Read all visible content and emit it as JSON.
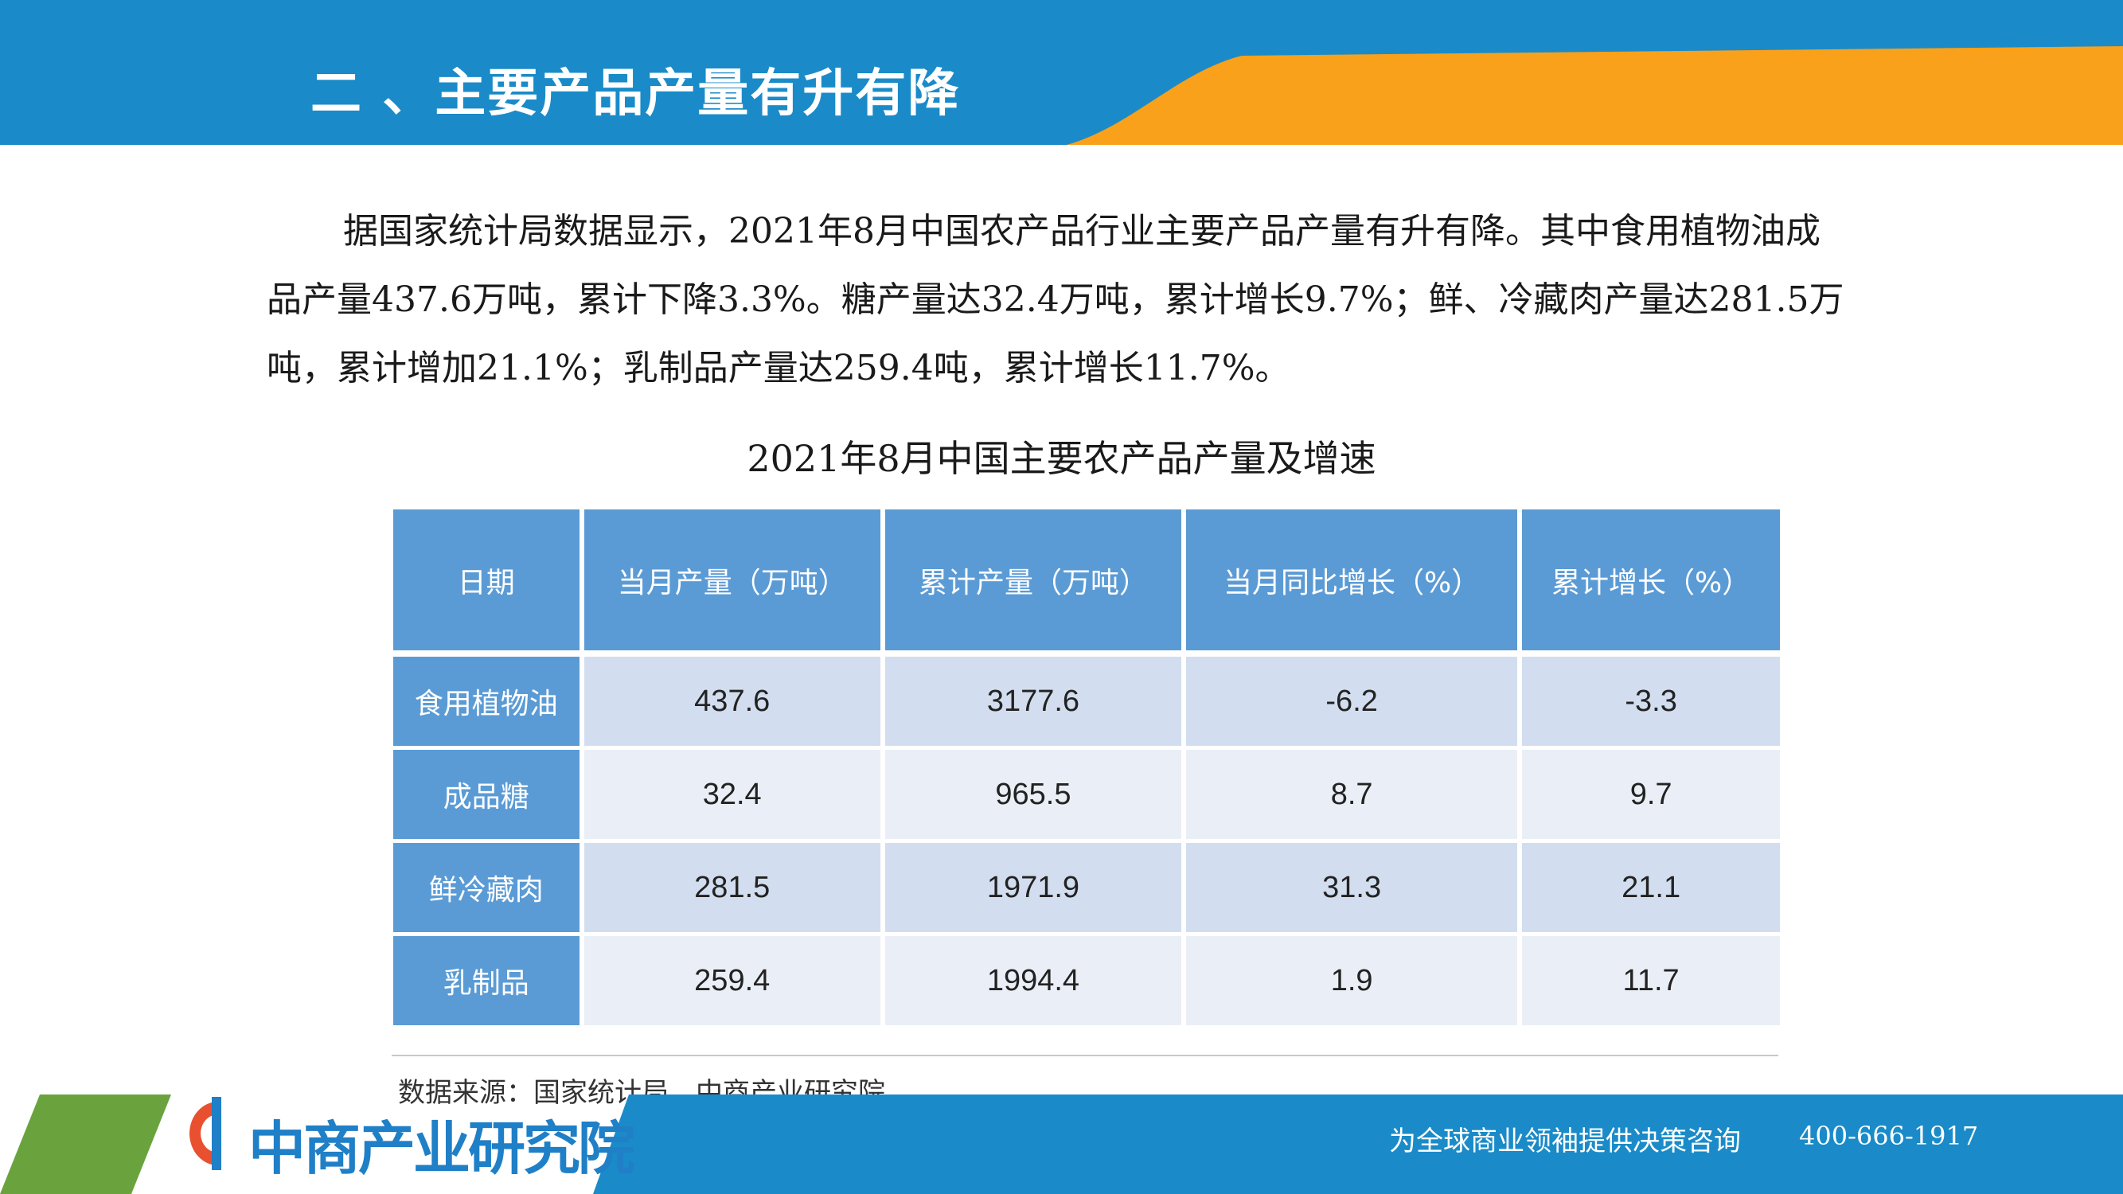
{
  "header": {
    "title": "二 、主要产品产量有升有降"
  },
  "intro_text": "据国家统计局数据显示，2021年8月中国农产品行业主要产品产量有升有降。其中食用植物油成品产量437.6万吨，累计下降3.3%。糖产量达32.4万吨，累计增长9.7%；鲜、冷藏肉产量达281.5万吨，累计增加21.1%；乳制品产量达259.4吨，累计增长11.7%。",
  "table": {
    "title": "2021年8月中国主要农产品产量及增速",
    "headers": [
      "日期",
      "当月产量（万吨）",
      "累计产量（万吨）",
      "当月同比增长（%）",
      "累计增长（%）"
    ],
    "rows": [
      {
        "label": "食用植物油",
        "cells": [
          "437.6",
          "3177.6",
          "-6.2",
          "-3.3"
        ]
      },
      {
        "label": "成品糖",
        "cells": [
          "32.4",
          "965.5",
          "8.7",
          "9.7"
        ]
      },
      {
        "label": "鲜冷藏肉",
        "cells": [
          "281.5",
          "1971.9",
          "31.3",
          "21.1"
        ]
      },
      {
        "label": "乳制品",
        "cells": [
          "259.4",
          "1994.4",
          "1.9",
          "11.7"
        ]
      }
    ]
  },
  "source": "数据来源：国家统计局、中商产业研究院",
  "footer": {
    "logo_text": "中商产业研究院",
    "slogan": "为全球商业领袖提供决策咨询",
    "phone": "400-666-1917"
  },
  "colors": {
    "header_blue": "#1a8bc8",
    "header_orange": "#f9a11b",
    "table_header": "#5b9bd5",
    "row_light": "#d2deef",
    "row_lighter": "#eaeff7",
    "footer_green": "#6aa33e"
  },
  "icons": {
    "logo": "askci-logo-icon"
  }
}
